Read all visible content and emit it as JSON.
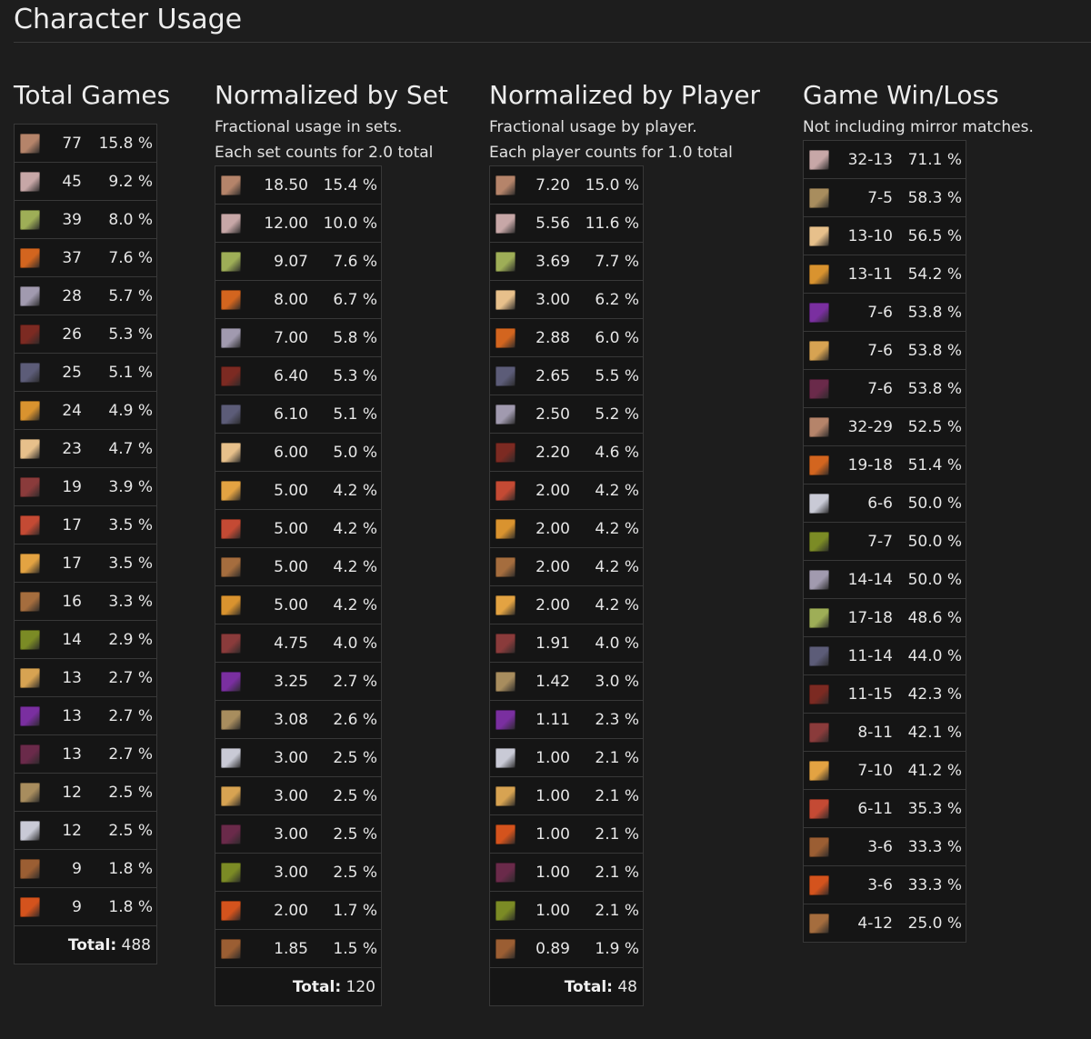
{
  "page_title": "Character Usage",
  "sections": [
    {
      "title": "Total Games",
      "desc": [],
      "rows": [
        {
          "icon": "character-portrait-icon",
          "color": "#b5846a",
          "a": "77",
          "b": "15.8 %"
        },
        {
          "icon": "character-portrait-icon",
          "color": "#c7a7a7",
          "a": "45",
          "b": "9.2 %"
        },
        {
          "icon": "character-portrait-icon",
          "color": "#9eae57",
          "a": "39",
          "b": "8.0 %"
        },
        {
          "icon": "character-portrait-icon",
          "color": "#d3651f",
          "a": "37",
          "b": "7.6 %"
        },
        {
          "icon": "character-portrait-icon",
          "color": "#a19aaf",
          "a": "28",
          "b": "5.7 %"
        },
        {
          "icon": "character-portrait-icon",
          "color": "#7c2a22",
          "a": "26",
          "b": "5.3 %"
        },
        {
          "icon": "character-portrait-icon",
          "color": "#5c5c78",
          "a": "25",
          "b": "5.1 %"
        },
        {
          "icon": "character-portrait-icon",
          "color": "#d9932f",
          "a": "24",
          "b": "4.9 %"
        },
        {
          "icon": "character-portrait-icon",
          "color": "#e7c08b",
          "a": "23",
          "b": "4.7 %"
        },
        {
          "icon": "character-portrait-icon",
          "color": "#8a3b3b",
          "a": "19",
          "b": "3.9 %"
        },
        {
          "icon": "character-portrait-icon",
          "color": "#c44a34",
          "a": "17",
          "b": "3.5 %"
        },
        {
          "icon": "character-portrait-icon",
          "color": "#e3a342",
          "a": "17",
          "b": "3.5 %"
        },
        {
          "icon": "character-portrait-icon",
          "color": "#a56d3e",
          "a": "16",
          "b": "3.3 %"
        },
        {
          "icon": "character-portrait-icon",
          "color": "#7b8b25",
          "a": "14",
          "b": "2.9 %"
        },
        {
          "icon": "character-portrait-icon",
          "color": "#d7a352",
          "a": "13",
          "b": "2.7 %"
        },
        {
          "icon": "character-portrait-icon",
          "color": "#7a2fa0",
          "a": "13",
          "b": "2.7 %"
        },
        {
          "icon": "character-portrait-icon",
          "color": "#6a2a4a",
          "a": "13",
          "b": "2.7 %"
        },
        {
          "icon": "character-portrait-icon",
          "color": "#a88d5e",
          "a": "12",
          "b": "2.5 %"
        },
        {
          "icon": "character-portrait-icon",
          "color": "#c9cad6",
          "a": "12",
          "b": "2.5 %"
        },
        {
          "icon": "character-portrait-icon",
          "color": "#9b5e33",
          "a": "9",
          "b": "1.8 %"
        },
        {
          "icon": "character-portrait-icon",
          "color": "#d4531d",
          "a": "9",
          "b": "1.8 %"
        }
      ],
      "total_label": "Total:",
      "total_value": "488"
    },
    {
      "title": "Normalized by Set",
      "desc": [
        "Fractional usage in sets.",
        "Each set counts for 2.0 total"
      ],
      "rows": [
        {
          "icon": "character-portrait-icon",
          "color": "#b5846a",
          "a": "18.50",
          "b": "15.4 %"
        },
        {
          "icon": "character-portrait-icon",
          "color": "#c7a7a7",
          "a": "12.00",
          "b": "10.0 %"
        },
        {
          "icon": "character-portrait-icon",
          "color": "#9eae57",
          "a": "9.07",
          "b": "7.6 %"
        },
        {
          "icon": "character-portrait-icon",
          "color": "#d3651f",
          "a": "8.00",
          "b": "6.7 %"
        },
        {
          "icon": "character-portrait-icon",
          "color": "#a19aaf",
          "a": "7.00",
          "b": "5.8 %"
        },
        {
          "icon": "character-portrait-icon",
          "color": "#7c2a22",
          "a": "6.40",
          "b": "5.3 %"
        },
        {
          "icon": "character-portrait-icon",
          "color": "#5c5c78",
          "a": "6.10",
          "b": "5.1 %"
        },
        {
          "icon": "character-portrait-icon",
          "color": "#e7c08b",
          "a": "6.00",
          "b": "5.0 %"
        },
        {
          "icon": "character-portrait-icon",
          "color": "#e3a342",
          "a": "5.00",
          "b": "4.2 %"
        },
        {
          "icon": "character-portrait-icon",
          "color": "#c44a34",
          "a": "5.00",
          "b": "4.2 %"
        },
        {
          "icon": "character-portrait-icon",
          "color": "#a56d3e",
          "a": "5.00",
          "b": "4.2 %"
        },
        {
          "icon": "character-portrait-icon",
          "color": "#d9932f",
          "a": "5.00",
          "b": "4.2 %"
        },
        {
          "icon": "character-portrait-icon",
          "color": "#8a3b3b",
          "a": "4.75",
          "b": "4.0 %"
        },
        {
          "icon": "character-portrait-icon",
          "color": "#7a2fa0",
          "a": "3.25",
          "b": "2.7 %"
        },
        {
          "icon": "character-portrait-icon",
          "color": "#a88d5e",
          "a": "3.08",
          "b": "2.6 %"
        },
        {
          "icon": "character-portrait-icon",
          "color": "#c9cad6",
          "a": "3.00",
          "b": "2.5 %"
        },
        {
          "icon": "character-portrait-icon",
          "color": "#d7a352",
          "a": "3.00",
          "b": "2.5 %"
        },
        {
          "icon": "character-portrait-icon",
          "color": "#6a2a4a",
          "a": "3.00",
          "b": "2.5 %"
        },
        {
          "icon": "character-portrait-icon",
          "color": "#7b8b25",
          "a": "3.00",
          "b": "2.5 %"
        },
        {
          "icon": "character-portrait-icon",
          "color": "#d4531d",
          "a": "2.00",
          "b": "1.7 %"
        },
        {
          "icon": "character-portrait-icon",
          "color": "#9b5e33",
          "a": "1.85",
          "b": "1.5 %"
        }
      ],
      "total_label": "Total:",
      "total_value": "120"
    },
    {
      "title": "Normalized by Player",
      "desc": [
        "Fractional usage by player.",
        "Each player counts for 1.0 total"
      ],
      "rows": [
        {
          "icon": "character-portrait-icon",
          "color": "#b5846a",
          "a": "7.20",
          "b": "15.0 %"
        },
        {
          "icon": "character-portrait-icon",
          "color": "#c7a7a7",
          "a": "5.56",
          "b": "11.6 %"
        },
        {
          "icon": "character-portrait-icon",
          "color": "#9eae57",
          "a": "3.69",
          "b": "7.7 %"
        },
        {
          "icon": "character-portrait-icon",
          "color": "#e7c08b",
          "a": "3.00",
          "b": "6.2 %"
        },
        {
          "icon": "character-portrait-icon",
          "color": "#d3651f",
          "a": "2.88",
          "b": "6.0 %"
        },
        {
          "icon": "character-portrait-icon",
          "color": "#5c5c78",
          "a": "2.65",
          "b": "5.5 %"
        },
        {
          "icon": "character-portrait-icon",
          "color": "#a19aaf",
          "a": "2.50",
          "b": "5.2 %"
        },
        {
          "icon": "character-portrait-icon",
          "color": "#7c2a22",
          "a": "2.20",
          "b": "4.6 %"
        },
        {
          "icon": "character-portrait-icon",
          "color": "#c44a34",
          "a": "2.00",
          "b": "4.2 %"
        },
        {
          "icon": "character-portrait-icon",
          "color": "#d9932f",
          "a": "2.00",
          "b": "4.2 %"
        },
        {
          "icon": "character-portrait-icon",
          "color": "#a56d3e",
          "a": "2.00",
          "b": "4.2 %"
        },
        {
          "icon": "character-portrait-icon",
          "color": "#e3a342",
          "a": "2.00",
          "b": "4.2 %"
        },
        {
          "icon": "character-portrait-icon",
          "color": "#8a3b3b",
          "a": "1.91",
          "b": "4.0 %"
        },
        {
          "icon": "character-portrait-icon",
          "color": "#a88d5e",
          "a": "1.42",
          "b": "3.0 %"
        },
        {
          "icon": "character-portrait-icon",
          "color": "#7a2fa0",
          "a": "1.11",
          "b": "2.3 %"
        },
        {
          "icon": "character-portrait-icon",
          "color": "#c9cad6",
          "a": "1.00",
          "b": "2.1 %"
        },
        {
          "icon": "character-portrait-icon",
          "color": "#d7a352",
          "a": "1.00",
          "b": "2.1 %"
        },
        {
          "icon": "character-portrait-icon",
          "color": "#d4531d",
          "a": "1.00",
          "b": "2.1 %"
        },
        {
          "icon": "character-portrait-icon",
          "color": "#6a2a4a",
          "a": "1.00",
          "b": "2.1 %"
        },
        {
          "icon": "character-portrait-icon",
          "color": "#7b8b25",
          "a": "1.00",
          "b": "2.1 %"
        },
        {
          "icon": "character-portrait-icon",
          "color": "#9b5e33",
          "a": "0.89",
          "b": "1.9 %"
        }
      ],
      "total_label": "Total:",
      "total_value": "48"
    },
    {
      "title": "Game Win/Loss",
      "desc": [
        "Not including mirror matches."
      ],
      "rows": [
        {
          "icon": "character-portrait-icon",
          "color": "#c7a7a7",
          "a": "32-13",
          "b": "71.1 %"
        },
        {
          "icon": "character-portrait-icon",
          "color": "#a88d5e",
          "a": "7-5",
          "b": "58.3 %"
        },
        {
          "icon": "character-portrait-icon",
          "color": "#e7c08b",
          "a": "13-10",
          "b": "56.5 %"
        },
        {
          "icon": "character-portrait-icon",
          "color": "#d9932f",
          "a": "13-11",
          "b": "54.2 %"
        },
        {
          "icon": "character-portrait-icon",
          "color": "#7a2fa0",
          "a": "7-6",
          "b": "53.8 %"
        },
        {
          "icon": "character-portrait-icon",
          "color": "#d7a352",
          "a": "7-6",
          "b": "53.8 %"
        },
        {
          "icon": "character-portrait-icon",
          "color": "#6a2a4a",
          "a": "7-6",
          "b": "53.8 %"
        },
        {
          "icon": "character-portrait-icon",
          "color": "#b5846a",
          "a": "32-29",
          "b": "52.5 %"
        },
        {
          "icon": "character-portrait-icon",
          "color": "#d3651f",
          "a": "19-18",
          "b": "51.4 %"
        },
        {
          "icon": "character-portrait-icon",
          "color": "#c9cad6",
          "a": "6-6",
          "b": "50.0 %"
        },
        {
          "icon": "character-portrait-icon",
          "color": "#7b8b25",
          "a": "7-7",
          "b": "50.0 %"
        },
        {
          "icon": "character-portrait-icon",
          "color": "#a19aaf",
          "a": "14-14",
          "b": "50.0 %"
        },
        {
          "icon": "character-portrait-icon",
          "color": "#9eae57",
          "a": "17-18",
          "b": "48.6 %"
        },
        {
          "icon": "character-portrait-icon",
          "color": "#5c5c78",
          "a": "11-14",
          "b": "44.0 %"
        },
        {
          "icon": "character-portrait-icon",
          "color": "#7c2a22",
          "a": "11-15",
          "b": "42.3 %"
        },
        {
          "icon": "character-portrait-icon",
          "color": "#8a3b3b",
          "a": "8-11",
          "b": "42.1 %"
        },
        {
          "icon": "character-portrait-icon",
          "color": "#e3a342",
          "a": "7-10",
          "b": "41.2 %"
        },
        {
          "icon": "character-portrait-icon",
          "color": "#c44a34",
          "a": "6-11",
          "b": "35.3 %"
        },
        {
          "icon": "character-portrait-icon",
          "color": "#9b5e33",
          "a": "3-6",
          "b": "33.3 %"
        },
        {
          "icon": "character-portrait-icon",
          "color": "#d4531d",
          "a": "3-6",
          "b": "33.3 %"
        },
        {
          "icon": "character-portrait-icon",
          "color": "#a56d3e",
          "a": "4-12",
          "b": "25.0 %"
        }
      ],
      "total_label": "",
      "total_value": ""
    }
  ]
}
